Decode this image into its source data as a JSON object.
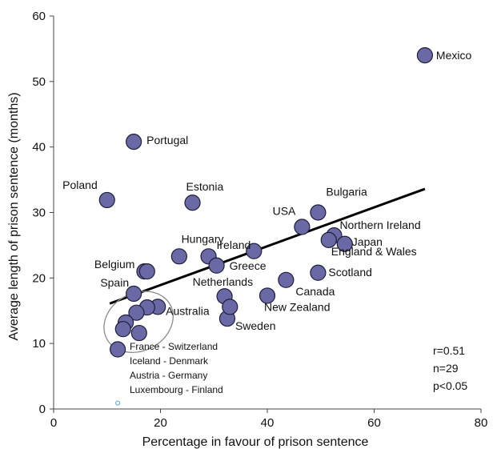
{
  "colors": {
    "marker_fill": "#6a69a5",
    "marker_stroke": "#1e1e3a",
    "trend_line": "#000000",
    "ellipse_stroke": "#8a8a8a",
    "axis": "#444444",
    "small_marker": "#4aa3d8"
  },
  "chart_data": {
    "type": "scatter",
    "title": "",
    "xlabel": "Percentage in favour of prison sentence",
    "ylabel": "Average length of prison sentence (months)",
    "xlim": [
      0,
      80
    ],
    "ylim": [
      0,
      60
    ],
    "x_ticks": [
      0,
      20,
      40,
      60,
      80
    ],
    "y_ticks": [
      0,
      10,
      20,
      30,
      40,
      50,
      60
    ],
    "grid": false,
    "points": [
      {
        "label": "Mexico",
        "x": 69.5,
        "y": 54
      },
      {
        "label": "Portugal",
        "x": 15,
        "y": 40.8
      },
      {
        "label": "Poland",
        "x": 10,
        "y": 31.9
      },
      {
        "label": "Estonia",
        "x": 26,
        "y": 31.5
      },
      {
        "label": "USA",
        "x": 46.5,
        "y": 27.8
      },
      {
        "label": "Bulgaria",
        "x": 49.5,
        "y": 30
      },
      {
        "label": "Ireland",
        "x": 37.5,
        "y": 24.1
      },
      {
        "label": "Northern Ireland",
        "x": 52.5,
        "y": 26.5
      },
      {
        "label": "Japan",
        "x": 54.5,
        "y": 25.2
      },
      {
        "label": "England & Wales",
        "x": 51.5,
        "y": 25.8
      },
      {
        "label": "Hungary",
        "x": 29,
        "y": 23.3
      },
      {
        "label": "Greece",
        "x": 30.5,
        "y": 21.9
      },
      {
        "label": "Belgium",
        "x": 17,
        "y": 21
      },
      {
        "label": "Scotland",
        "x": 49.5,
        "y": 20.8
      },
      {
        "label": "Canada",
        "x": 43.5,
        "y": 19.7
      },
      {
        "label": "Spain",
        "x": 15,
        "y": 17.6
      },
      {
        "label": "Netherlands",
        "x": 32,
        "y": 17.2
      },
      {
        "label": "New Zealand",
        "x": 40,
        "y": 17.3
      },
      {
        "label": "Australia",
        "x": 19.5,
        "y": 15.6
      },
      {
        "label": "Sweden",
        "x": 32.5,
        "y": 13.8
      },
      {
        "label": "",
        "x": 23.5,
        "y": 23.3
      },
      {
        "label": "",
        "x": 17.5,
        "y": 21
      },
      {
        "label": "",
        "x": 33,
        "y": 15.6
      },
      {
        "label": "",
        "x": 17.5,
        "y": 15.5
      },
      {
        "label": "",
        "x": 15.5,
        "y": 14.7
      },
      {
        "label": "",
        "x": 13.5,
        "y": 13.2
      },
      {
        "label": "",
        "x": 13,
        "y": 12.2
      },
      {
        "label": "",
        "x": 16,
        "y": 11.6
      },
      {
        "label": "",
        "x": 12,
        "y": 9.1
      }
    ],
    "small_point": {
      "x": 12,
      "y": 0.9
    },
    "trend_line": {
      "x": [
        10.5,
        69.5
      ],
      "y": [
        16.1,
        33.6
      ]
    },
    "cluster_note": [
      "France - Switzerland",
      "Iceland - Denmark",
      "Austria - Germany",
      "Luxembourg - Finland"
    ],
    "stats": [
      "r=0.51",
      "n=29",
      "p<0.05"
    ]
  }
}
